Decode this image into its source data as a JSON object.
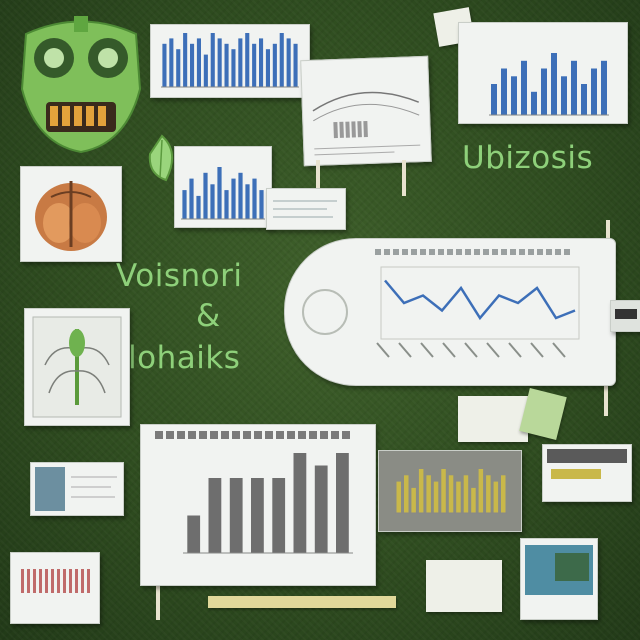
{
  "labels": {
    "title_right": "Ubizosis",
    "line1": "Voisnori",
    "line2": "&",
    "line3": "lohaiks"
  },
  "colors": {
    "background": "#2f4d20",
    "text_green": "#8ed07a",
    "bar_blue": "#3d6fb8",
    "bar_gray": "#6e6e6e",
    "bar_yellow": "#c9b84a",
    "line_blue": "#3d6fb8"
  },
  "icons": {
    "mascot": "green-skull-mascot-icon",
    "leaf": "leaf-icon",
    "anatomy": "anatomy-illustration-icon",
    "plant": "plant-specimen-icon"
  },
  "charts": {
    "top_center_bars": [
      8,
      9,
      7,
      10,
      8,
      9,
      6,
      10,
      9,
      8,
      7,
      9,
      10,
      8,
      9,
      7,
      8,
      10,
      9,
      8
    ],
    "top_right_bars": [
      4,
      6,
      5,
      7,
      3,
      6,
      8,
      5,
      7,
      4,
      6,
      7
    ],
    "left_mid_bars": [
      5,
      7,
      4,
      8,
      6,
      9,
      5,
      7,
      8,
      6,
      7,
      5
    ],
    "center_line": [
      7,
      4,
      5,
      3,
      6,
      2,
      5,
      4,
      6,
      2,
      3
    ],
    "bottom_center_bars": [
      3,
      6,
      6,
      6,
      6,
      8,
      7,
      8
    ],
    "bottom_right_bars": [
      5,
      6,
      4,
      7,
      6,
      5,
      7,
      6,
      5,
      6,
      4,
      7,
      6,
      5,
      6
    ]
  }
}
